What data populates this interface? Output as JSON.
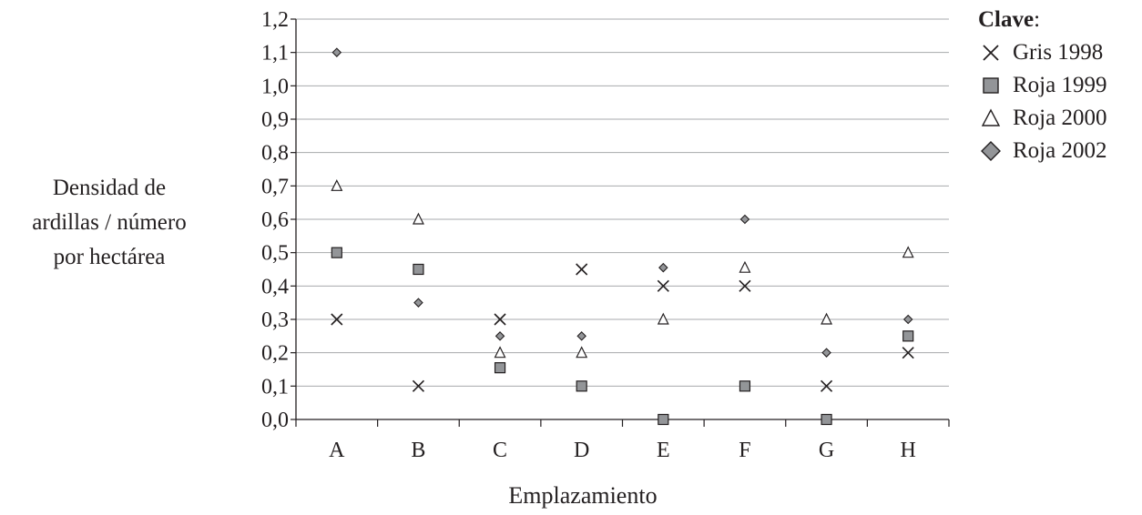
{
  "chart_data": {
    "type": "scatter",
    "title": "",
    "xlabel": "Emplazamiento",
    "ylabel_lines": [
      "Densidad de",
      "ardillas / número",
      "por hectárea"
    ],
    "categories": [
      "A",
      "B",
      "C",
      "D",
      "E",
      "F",
      "G",
      "H"
    ],
    "ylim": [
      0,
      1.2
    ],
    "yticks": [
      "0,0",
      "0,1",
      "0,2",
      "0,3",
      "0,4",
      "0,5",
      "0,6",
      "0,7",
      "0,8",
      "0,9",
      "1,0",
      "1,1",
      "1,2"
    ],
    "grid": true,
    "legend": {
      "title": "Clave",
      "placement": "top-right"
    },
    "series": [
      {
        "name": "Gris 1998",
        "marker": "cross",
        "values": [
          0.3,
          0.1,
          0.3,
          0.45,
          0.4,
          0.4,
          0.1,
          0.2
        ]
      },
      {
        "name": "Roja 1999",
        "marker": "square",
        "values": [
          0.5,
          0.45,
          0.155,
          0.1,
          0.0,
          0.1,
          0.0,
          0.25
        ]
      },
      {
        "name": "Roja 2000",
        "marker": "triangle",
        "values": [
          0.7,
          0.6,
          0.2,
          0.2,
          0.3,
          0.455,
          0.3,
          0.5
        ]
      },
      {
        "name": "Roja 2002",
        "marker": "diamond",
        "values": [
          1.1,
          0.35,
          0.25,
          0.25,
          0.455,
          0.6,
          0.2,
          0.3
        ]
      }
    ]
  }
}
